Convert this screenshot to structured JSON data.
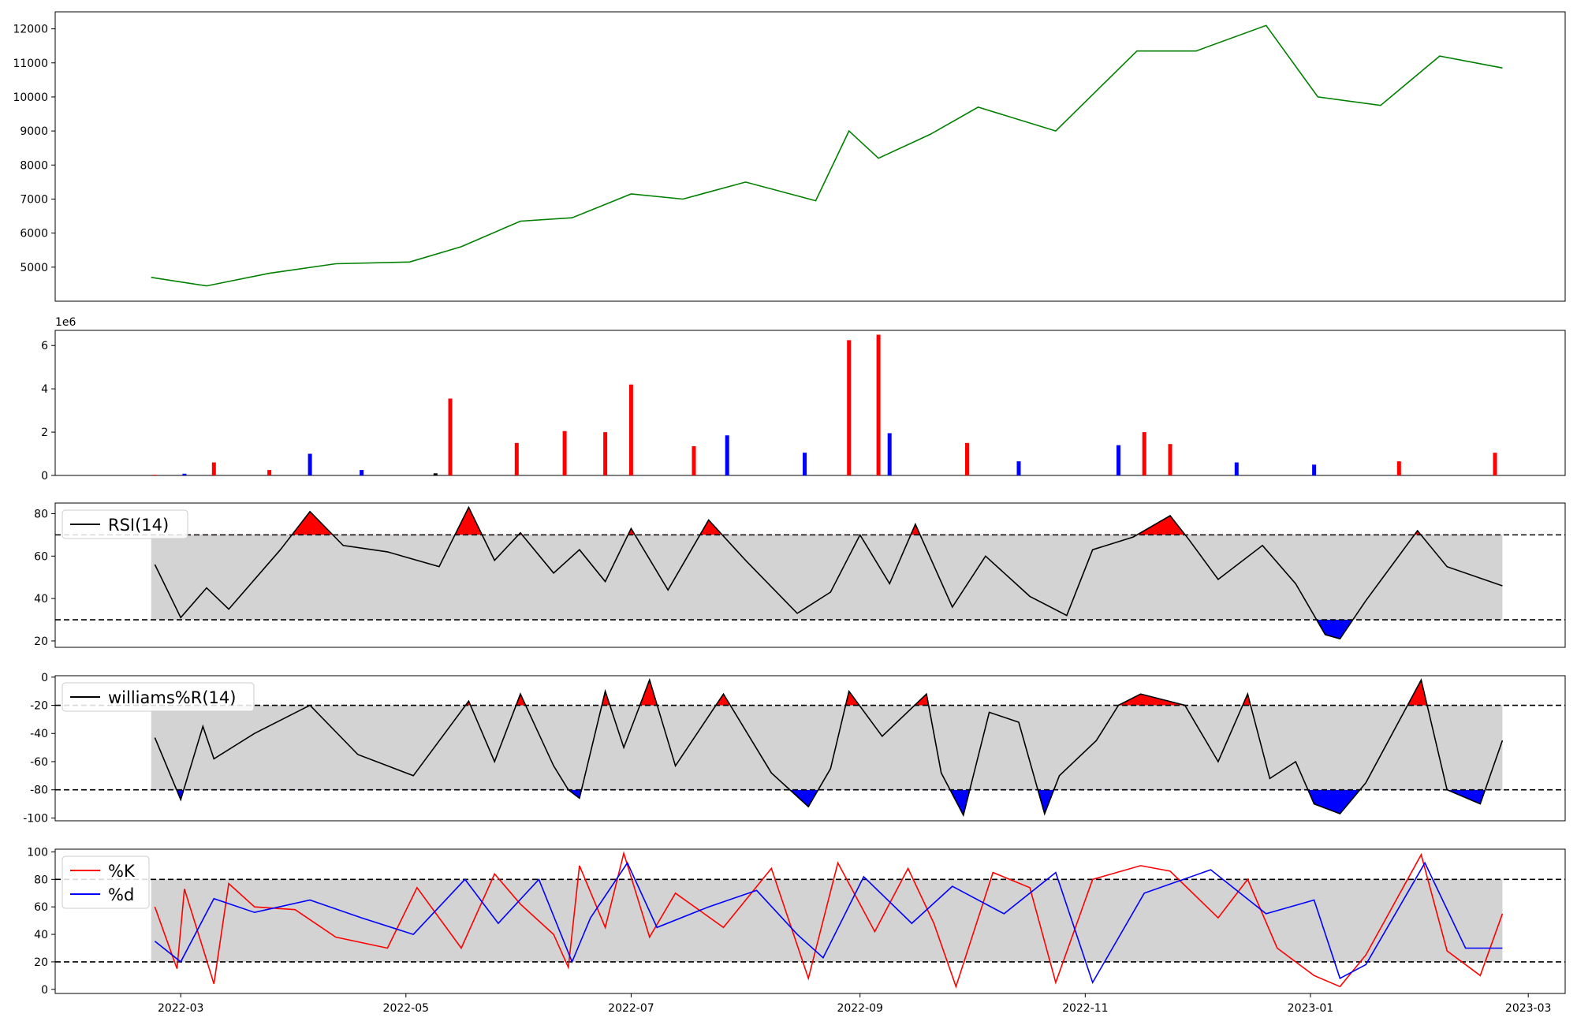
{
  "chart_data": [
    {
      "type": "line",
      "name_hint": "price",
      "x": [
        "2022-02-21",
        "2022-03-08",
        "2022-03-25",
        "2022-04-12",
        "2022-05-02",
        "2022-05-16",
        "2022-06-01",
        "2022-06-15",
        "2022-07-01",
        "2022-07-15",
        "2022-08-01",
        "2022-08-20",
        "2022-08-29",
        "2022-09-06",
        "2022-09-20",
        "2022-10-03",
        "2022-10-24",
        "2022-11-15",
        "2022-12-01",
        "2022-12-20",
        "2023-01-03",
        "2023-01-20",
        "2023-02-05",
        "2023-02-22"
      ],
      "values": [
        4700,
        4450,
        4820,
        5100,
        5150,
        5600,
        6350,
        6450,
        7150,
        7000,
        7500,
        6950,
        9000,
        8200,
        8900,
        9700,
        9000,
        11350,
        11350,
        12100,
        10000,
        9750,
        11200,
        10850
      ],
      "color": "#008000",
      "yticks": [
        5000,
        6000,
        7000,
        8000,
        9000,
        10000,
        11000,
        12000
      ],
      "ylim": [
        4000,
        12500
      ]
    },
    {
      "type": "bar",
      "name_hint": "volume",
      "scale_label": "1e6",
      "yticks": [
        0,
        2,
        4,
        6
      ],
      "ylim": [
        0,
        6.7
      ],
      "x": [
        "2022-02-22",
        "2022-03-02",
        "2022-03-10",
        "2022-03-25",
        "2022-04-05",
        "2022-04-19",
        "2022-05-09",
        "2022-05-13",
        "2022-05-31",
        "2022-06-13",
        "2022-06-24",
        "2022-07-01",
        "2022-07-18",
        "2022-07-27",
        "2022-08-17",
        "2022-08-29",
        "2022-09-06",
        "2022-09-09",
        "2022-09-30",
        "2022-10-14",
        "2022-11-10",
        "2022-11-17",
        "2022-11-24",
        "2022-12-12",
        "2023-01-02",
        "2023-01-25",
        "2023-02-20"
      ],
      "values": [
        0.03,
        0.08,
        0.6,
        0.25,
        1.0,
        0.25,
        0.1,
        3.55,
        1.5,
        2.05,
        2.0,
        4.2,
        1.35,
        1.85,
        1.05,
        6.25,
        6.5,
        1.95,
        1.5,
        0.65,
        1.4,
        2.0,
        1.45,
        0.6,
        0.5,
        0.65,
        1.05
      ],
      "colors": [
        "red",
        "blue",
        "red",
        "red",
        "blue",
        "blue",
        "black",
        "red",
        "red",
        "red",
        "red",
        "red",
        "red",
        "blue",
        "blue",
        "red",
        "red",
        "blue",
        "red",
        "blue",
        "blue",
        "red",
        "red",
        "blue",
        "blue",
        "red",
        "red"
      ]
    },
    {
      "type": "line",
      "name_hint": "rsi",
      "legend": "RSI(14)",
      "yticks": [
        20,
        40,
        60,
        80
      ],
      "ylim": [
        17,
        85
      ],
      "band": [
        30,
        70
      ],
      "x": [
        "2022-02-22",
        "2022-03-01",
        "2022-03-08",
        "2022-03-14",
        "2022-03-28",
        "2022-04-05",
        "2022-04-14",
        "2022-04-26",
        "2022-05-10",
        "2022-05-18",
        "2022-05-25",
        "2022-06-01",
        "2022-06-10",
        "2022-06-17",
        "2022-06-24",
        "2022-07-01",
        "2022-07-11",
        "2022-07-22",
        "2022-08-01",
        "2022-08-15",
        "2022-08-24",
        "2022-09-01",
        "2022-09-09",
        "2022-09-16",
        "2022-09-26",
        "2022-10-05",
        "2022-10-17",
        "2022-10-27",
        "2022-11-03",
        "2022-11-14",
        "2022-11-24",
        "2022-11-29",
        "2022-12-07",
        "2022-12-19",
        "2022-12-28",
        "2023-01-05",
        "2023-01-09",
        "2023-01-16",
        "2023-01-30",
        "2023-02-07",
        "2023-02-22"
      ],
      "values": [
        56,
        31,
        45,
        35,
        63,
        81,
        65,
        62,
        55,
        83,
        58,
        71,
        52,
        63,
        48,
        73,
        44,
        77,
        58,
        33,
        43,
        70,
        47,
        75,
        36,
        60,
        41,
        32,
        63,
        69,
        79,
        68,
        49,
        65,
        47,
        23,
        21,
        39,
        72,
        55,
        46
      ]
    },
    {
      "type": "line",
      "name_hint": "williams",
      "legend": "williams%R(14)",
      "yticks": [
        -100,
        -80,
        -60,
        -40,
        -20,
        0
      ],
      "ylim": [
        -102,
        1
      ],
      "band": [
        -80,
        -20
      ],
      "x": [
        "2022-02-22",
        "2022-03-01",
        "2022-03-07",
        "2022-03-10",
        "2022-03-21",
        "2022-04-05",
        "2022-04-18",
        "2022-04-26",
        "2022-05-03",
        "2022-05-18",
        "2022-05-25",
        "2022-06-01",
        "2022-06-10",
        "2022-06-14",
        "2022-06-17",
        "2022-06-24",
        "2022-06-29",
        "2022-07-06",
        "2022-07-13",
        "2022-07-26",
        "2022-08-08",
        "2022-08-18",
        "2022-08-24",
        "2022-08-29",
        "2022-09-07",
        "2022-09-19",
        "2022-09-23",
        "2022-09-29",
        "2022-10-06",
        "2022-10-14",
        "2022-10-21",
        "2022-10-25",
        "2022-11-04",
        "2022-11-10",
        "2022-11-16",
        "2022-11-28",
        "2022-12-07",
        "2022-12-15",
        "2022-12-21",
        "2022-12-28",
        "2023-01-02",
        "2023-01-09",
        "2023-01-16",
        "2023-01-31",
        "2023-02-07",
        "2023-02-16",
        "2023-02-22"
      ],
      "values": [
        -43,
        -87,
        -35,
        -58,
        -40,
        -20,
        -55,
        -63,
        -70,
        -17,
        -60,
        -12,
        -63,
        -80,
        -86,
        -10,
        -50,
        -2,
        -63,
        -12,
        -68,
        -92,
        -65,
        -10,
        -42,
        -12,
        -68,
        -98,
        -25,
        -32,
        -97,
        -70,
        -45,
        -20,
        -12,
        -20,
        -60,
        -12,
        -72,
        -60,
        -90,
        -97,
        -75,
        -2,
        -80,
        -90,
        -45
      ]
    },
    {
      "type": "line",
      "name_hint": "stochastic",
      "yticks": [
        0,
        20,
        40,
        60,
        80,
        100
      ],
      "ylim": [
        -3,
        102
      ],
      "band": [
        20,
        80
      ],
      "series": [
        {
          "name": "%K",
          "color": "red",
          "x": [
            "2022-02-22",
            "2022-02-28",
            "2022-03-02",
            "2022-03-07",
            "2022-03-10",
            "2022-03-14",
            "2022-03-21",
            "2022-04-01",
            "2022-04-12",
            "2022-04-26",
            "2022-05-04",
            "2022-05-16",
            "2022-05-25",
            "2022-06-01",
            "2022-06-10",
            "2022-06-14",
            "2022-06-17",
            "2022-06-24",
            "2022-06-29",
            "2022-07-06",
            "2022-07-13",
            "2022-07-26",
            "2022-08-08",
            "2022-08-18",
            "2022-08-26",
            "2022-09-05",
            "2022-09-14",
            "2022-09-21",
            "2022-09-27",
            "2022-10-07",
            "2022-10-17",
            "2022-10-24",
            "2022-11-03",
            "2022-11-16",
            "2022-11-24",
            "2022-12-07",
            "2022-12-15",
            "2022-12-23",
            "2023-01-02",
            "2023-01-09",
            "2023-01-16",
            "2023-01-31",
            "2023-02-07",
            "2023-02-16",
            "2023-02-22"
          ],
          "values": [
            60,
            15,
            73,
            30,
            4,
            77,
            60,
            58,
            38,
            30,
            74,
            30,
            84,
            62,
            40,
            16,
            90,
            45,
            99,
            38,
            70,
            45,
            88,
            8,
            92,
            42,
            88,
            48,
            2,
            85,
            74,
            5,
            80,
            90,
            86,
            52,
            80,
            30,
            10,
            2,
            25,
            98,
            28,
            10,
            55
          ]
        },
        {
          "name": "%d",
          "color": "blue",
          "x": [
            "2022-02-22",
            "2022-03-01",
            "2022-03-10",
            "2022-03-21",
            "2022-04-05",
            "2022-04-19",
            "2022-05-03",
            "2022-05-17",
            "2022-05-26",
            "2022-06-06",
            "2022-06-15",
            "2022-06-20",
            "2022-06-30",
            "2022-07-08",
            "2022-07-22",
            "2022-08-04",
            "2022-08-15",
            "2022-08-22",
            "2022-09-02",
            "2022-09-15",
            "2022-09-26",
            "2022-10-10",
            "2022-10-24",
            "2022-11-03",
            "2022-11-17",
            "2022-12-05",
            "2022-12-20",
            "2023-01-02",
            "2023-01-09",
            "2023-01-16",
            "2023-02-01",
            "2023-02-12",
            "2023-02-22"
          ],
          "values": [
            35,
            20,
            66,
            56,
            65,
            52,
            40,
            80,
            48,
            80,
            20,
            52,
            92,
            45,
            60,
            72,
            40,
            23,
            82,
            48,
            75,
            55,
            85,
            5,
            70,
            87,
            55,
            65,
            8,
            18,
            92,
            30,
            30
          ]
        }
      ]
    }
  ],
  "x_axis": {
    "ticks": [
      {
        "date": "2022-03-01",
        "label": "2022-03"
      },
      {
        "date": "2022-05-01",
        "label": "2022-05"
      },
      {
        "date": "2022-07-01",
        "label": "2022-07"
      },
      {
        "date": "2022-09-01",
        "label": "2022-09"
      },
      {
        "date": "2022-11-01",
        "label": "2022-11"
      },
      {
        "date": "2023-01-01",
        "label": "2023-01"
      },
      {
        "date": "2023-03-01",
        "label": "2023-03"
      }
    ],
    "range": [
      "2022-01-26",
      "2023-03-11"
    ]
  },
  "colors": {
    "overbought": "#ff0000",
    "oversold": "#0000ff",
    "band_fill": "#d3d3d3",
    "line": "#000000"
  }
}
